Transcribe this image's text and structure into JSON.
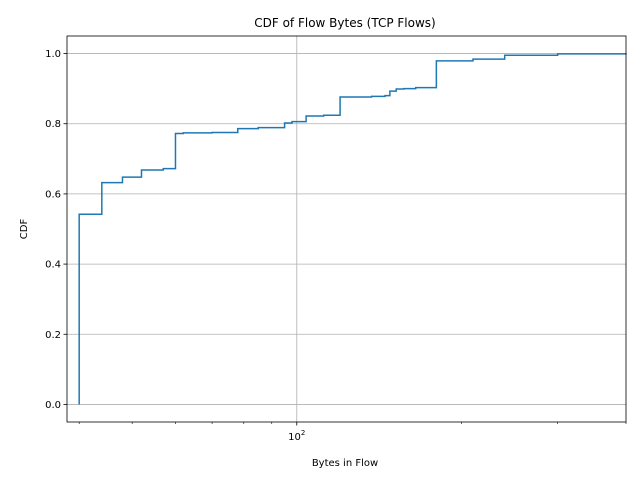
{
  "chart_data": {
    "type": "line",
    "subtype": "step-cdf",
    "title": "CDF of Flow Bytes (TCP Flows)",
    "xlabel": "Bytes in Flow",
    "ylabel": "CDF",
    "xscale": "log",
    "xlim": [
      38,
      400
    ],
    "ylim": [
      -0.05,
      1.05
    ],
    "grid": true,
    "line_color": "#1f77b4",
    "xticks": [
      {
        "value": 100,
        "base": "10",
        "exp": "2"
      }
    ],
    "yticks": [
      {
        "value": 0.0,
        "label": "0.0"
      },
      {
        "value": 0.2,
        "label": "0.2"
      },
      {
        "value": 0.4,
        "label": "0.4"
      },
      {
        "value": 0.6,
        "label": "0.6"
      },
      {
        "value": 0.8,
        "label": "0.8"
      },
      {
        "value": 1.0,
        "label": "1.0"
      }
    ],
    "series": [
      {
        "x": [
          40,
          40,
          44,
          48,
          52,
          57,
          60,
          62,
          70,
          78,
          85,
          95,
          98,
          104,
          112,
          120,
          137,
          145,
          148,
          152,
          157,
          165,
          180,
          210,
          240,
          300,
          400
        ],
        "y": [
          0.0,
          0.542,
          0.632,
          0.648,
          0.668,
          0.672,
          0.772,
          0.774,
          0.775,
          0.786,
          0.789,
          0.802,
          0.806,
          0.822,
          0.824,
          0.876,
          0.878,
          0.88,
          0.893,
          0.899,
          0.9,
          0.903,
          0.979,
          0.984,
          0.995,
          0.999,
          1.0
        ]
      }
    ]
  }
}
